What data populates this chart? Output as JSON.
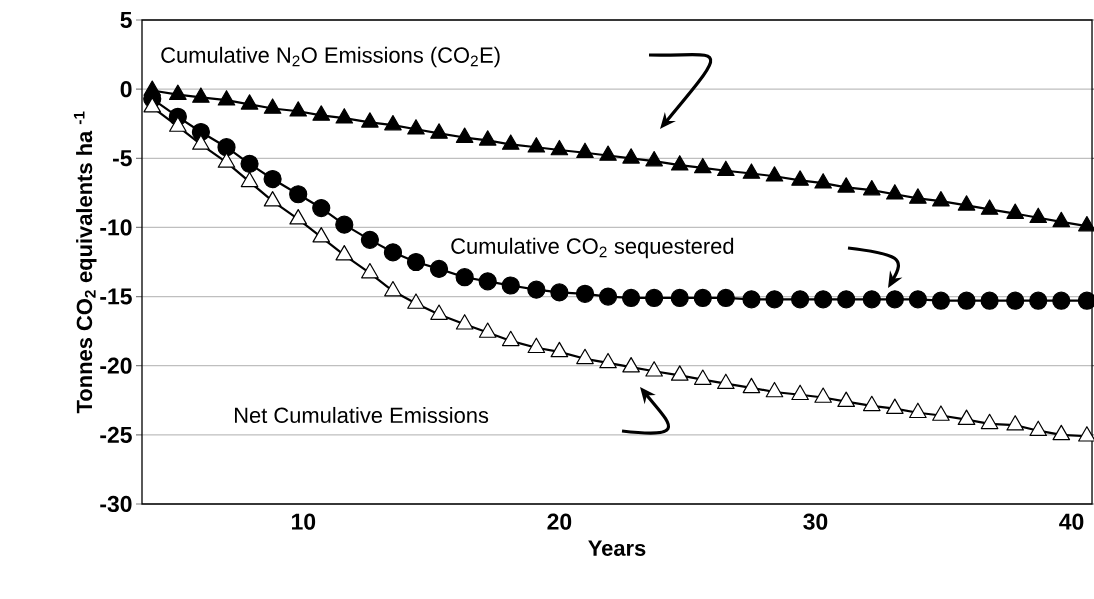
{
  "chart_data": {
    "type": "line",
    "xlabel": "Years",
    "ylabel": "Tonnes CO$_{2}$ equivalents ha $^{-1}$",
    "x": [
      4.1,
      5.1,
      6.0,
      7.0,
      7.9,
      8.8,
      9.8,
      10.7,
      11.6,
      12.6,
      13.5,
      14.4,
      15.3,
      16.3,
      17.2,
      18.1,
      19.1,
      20.0,
      21.0,
      21.9,
      22.8,
      23.7,
      24.7,
      25.6,
      26.5,
      27.5,
      28.4,
      29.4,
      30.3,
      31.2,
      32.2,
      33.1,
      34.0,
      34.9,
      35.9,
      36.8,
      37.8,
      38.7,
      39.6,
      40.6
    ],
    "series": [
      {
        "color": "#000000",
        "marker": "triangle",
        "values": [
          -0.1,
          -0.4,
          -0.6,
          -0.8,
          -1.1,
          -1.4,
          -1.6,
          -1.9,
          -2.1,
          -2.4,
          -2.6,
          -2.9,
          -3.2,
          -3.5,
          -3.7,
          -4.0,
          -4.2,
          -4.4,
          -4.6,
          -4.8,
          -5.0,
          -5.2,
          -5.5,
          -5.7,
          -5.9,
          -6.1,
          -6.3,
          -6.6,
          -6.8,
          -7.1,
          -7.3,
          -7.6,
          -7.9,
          -8.1,
          -8.4,
          -8.7,
          -9.0,
          -9.3,
          -9.6,
          -9.9
        ]
      },
      {
        "color": "#000000",
        "marker": "circle",
        "values": [
          -0.7,
          -2.0,
          -3.1,
          -4.2,
          -5.4,
          -6.5,
          -7.6,
          -8.6,
          -9.8,
          -10.9,
          -11.8,
          -12.5,
          -13.0,
          -13.6,
          -13.9,
          -14.2,
          -14.5,
          -14.7,
          -14.8,
          -15.0,
          -15.1,
          -15.1,
          -15.1,
          -15.1,
          -15.1,
          -15.2,
          -15.2,
          -15.2,
          -15.2,
          -15.2,
          -15.2,
          -15.2,
          -15.2,
          -15.3,
          -15.3,
          -15.3,
          -15.3,
          -15.3,
          -15.3,
          -15.3
        ]
      },
      {
        "color": "#ffffff",
        "marker": "triangle",
        "values": [
          -1.3,
          -2.7,
          -4.0,
          -5.3,
          -6.7,
          -8.1,
          -9.4,
          -10.7,
          -12.0,
          -13.3,
          -14.6,
          -15.5,
          -16.3,
          -17.0,
          -17.6,
          -18.2,
          -18.7,
          -19.0,
          -19.5,
          -19.8,
          -20.1,
          -20.4,
          -20.7,
          -21.0,
          -21.3,
          -21.6,
          -21.9,
          -22.1,
          -22.3,
          -22.6,
          -22.9,
          -23.1,
          -23.4,
          -23.6,
          -23.9,
          -24.2,
          -24.3,
          -24.7,
          -25.0,
          -25.1
        ]
      }
    ],
    "xlim": [
      3.7,
      40.8
    ],
    "xticks": [
      10,
      20,
      30,
      40
    ],
    "ylim": [
      -30,
      5
    ],
    "yticks": [
      -30,
      -25,
      -20,
      -15,
      -10,
      -5,
      0,
      5
    ],
    "grid": "y",
    "line_style": "solid",
    "annotations": [
      "Cumulative N$_{2}$O Emissions  (CO$_{2}$E)",
      "Cumulative CO$_{2}$ sequestered",
      "Net Cumulative  Emissions"
    ]
  }
}
